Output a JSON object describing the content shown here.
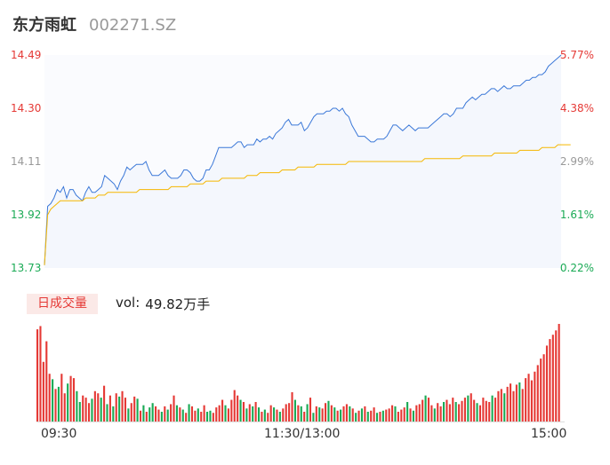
{
  "header": {
    "name": "东方雨虹",
    "code": "002271.SZ"
  },
  "volume_panel": {
    "tab_label": "日成交量",
    "vol_label": "vol:",
    "vol_value": "49.82万手"
  },
  "colors": {
    "price": "#3b78d8",
    "avg": "#f5b700",
    "up": "#e53935",
    "down": "#1aaa55",
    "area": "#f4f7fd",
    "axis_neutral": "#999999"
  },
  "chart_data": [
    {
      "type": "line",
      "y_axis_left": [
        "14.49",
        "14.30",
        "14.11",
        "13.92",
        "13.73"
      ],
      "y_axis_right": [
        "5.77%",
        "4.38%",
        "2.99%",
        "1.61%",
        "0.22%"
      ],
      "ylim": [
        13.73,
        14.49
      ],
      "x_ticks": [
        "09:30",
        "11:30/13:00",
        "15:00"
      ],
      "series": [
        {
          "values": [
            13.74,
            13.95,
            13.96,
            13.98,
            14.01,
            14.0,
            14.02,
            13.98,
            14.01,
            14.01,
            13.99,
            13.98,
            13.97,
            14.0,
            14.02,
            14.0,
            14.0,
            14.01,
            14.02,
            14.06,
            14.05,
            14.04,
            14.03,
            14.01,
            14.04,
            14.06,
            14.09,
            14.08,
            14.09,
            14.1,
            14.1,
            14.1,
            14.11,
            14.08,
            14.06,
            14.06,
            14.06,
            14.07,
            14.08,
            14.06,
            14.05,
            14.05,
            14.05,
            14.06,
            14.08,
            14.08,
            14.07,
            14.05,
            14.04,
            14.04,
            14.05,
            14.08,
            14.08,
            14.1,
            14.13,
            14.16,
            14.16,
            14.16,
            14.16,
            14.16,
            14.17,
            14.18,
            14.18,
            14.16,
            14.17,
            14.17,
            14.17,
            14.19,
            14.18,
            14.19,
            14.19,
            14.2,
            14.19,
            14.21,
            14.22,
            14.23,
            14.25,
            14.26,
            14.24,
            14.24,
            14.24,
            14.25,
            14.22,
            14.23,
            14.25,
            14.27,
            14.28,
            14.28,
            14.28,
            14.29,
            14.29,
            14.3,
            14.3,
            14.29,
            14.3,
            14.28,
            14.27,
            14.24,
            14.22,
            14.2,
            14.2,
            14.2,
            14.19,
            14.18,
            14.18,
            14.19,
            14.19,
            14.19,
            14.2,
            14.22,
            14.24,
            14.24,
            14.23,
            14.22,
            14.23,
            14.24,
            14.23,
            14.22,
            14.23,
            14.23,
            14.23,
            14.23,
            14.24,
            14.25,
            14.26,
            14.27,
            14.28,
            14.28,
            14.27,
            14.28,
            14.3,
            14.3,
            14.3,
            14.32,
            14.33,
            14.34,
            14.33,
            14.34,
            14.35,
            14.35,
            14.36,
            14.37,
            14.37,
            14.36,
            14.37,
            14.38,
            14.37,
            14.37,
            14.38,
            14.38,
            14.38,
            14.39,
            14.4,
            14.4,
            14.41,
            14.41,
            14.42,
            14.42,
            14.43,
            14.45,
            14.46,
            14.47,
            14.48,
            14.49
          ]
        },
        {
          "values": [
            13.74,
            13.92,
            13.94,
            13.95,
            13.96,
            13.97,
            13.97,
            13.97,
            13.97,
            13.97,
            13.97,
            13.97,
            13.97,
            13.98,
            13.98,
            13.98,
            13.98,
            13.99,
            13.99,
            13.99,
            14.0,
            14.0,
            14.0,
            14.0,
            14.0,
            14.0,
            14.0,
            14.0,
            14.0,
            14.0,
            14.01,
            14.01,
            14.01,
            14.01,
            14.01,
            14.01,
            14.01,
            14.01,
            14.01,
            14.01,
            14.02,
            14.02,
            14.02,
            14.02,
            14.02,
            14.02,
            14.03,
            14.03,
            14.03,
            14.03,
            14.03,
            14.04,
            14.04,
            14.04,
            14.04,
            14.04,
            14.05,
            14.05,
            14.05,
            14.05,
            14.05,
            14.05,
            14.05,
            14.05,
            14.06,
            14.06,
            14.06,
            14.06,
            14.07,
            14.07,
            14.07,
            14.07,
            14.07,
            14.07,
            14.07,
            14.08,
            14.08,
            14.08,
            14.08,
            14.08,
            14.09,
            14.09,
            14.09,
            14.09,
            14.09,
            14.09,
            14.1,
            14.1,
            14.1,
            14.1,
            14.1,
            14.1,
            14.1,
            14.1,
            14.1,
            14.1,
            14.11,
            14.11,
            14.11,
            14.11,
            14.11,
            14.11,
            14.11,
            14.11,
            14.11,
            14.11,
            14.11,
            14.11,
            14.11,
            14.11,
            14.11,
            14.11,
            14.11,
            14.11,
            14.11,
            14.11,
            14.11,
            14.11,
            14.11,
            14.11,
            14.12,
            14.12,
            14.12,
            14.12,
            14.12,
            14.12,
            14.12,
            14.12,
            14.12,
            14.12,
            14.12,
            14.12,
            14.13,
            14.13,
            14.13,
            14.13,
            14.13,
            14.13,
            14.13,
            14.13,
            14.13,
            14.13,
            14.14,
            14.14,
            14.14,
            14.14,
            14.14,
            14.14,
            14.14,
            14.14,
            14.15,
            14.15,
            14.15,
            14.15,
            14.15,
            14.15,
            14.15,
            14.16,
            14.16,
            14.16,
            14.16,
            14.16,
            14.17,
            14.17,
            14.17,
            14.17,
            14.17
          ]
        }
      ]
    },
    {
      "type": "bar",
      "values": [
        85,
        88,
        55,
        74,
        44,
        39,
        30,
        32,
        44,
        26,
        35,
        42,
        40,
        28,
        18,
        24,
        22,
        17,
        21,
        28,
        26,
        22,
        33,
        16,
        24,
        14,
        26,
        23,
        28,
        22,
        12,
        17,
        23,
        21,
        10,
        15,
        9,
        13,
        17,
        14,
        11,
        9,
        14,
        11,
        16,
        24,
        15,
        13,
        11,
        8,
        16,
        14,
        10,
        12,
        9,
        15,
        9,
        10,
        8,
        13,
        15,
        20,
        15,
        12,
        20,
        29,
        24,
        20,
        18,
        12,
        16,
        14,
        18,
        13,
        9,
        11,
        8,
        15,
        13,
        11,
        9,
        12,
        16,
        17,
        27,
        20,
        15,
        14,
        9,
        16,
        22,
        8,
        14,
        13,
        12,
        17,
        19,
        15,
        13,
        10,
        11,
        14,
        16,
        14,
        12,
        8,
        10,
        12,
        14,
        9,
        10,
        13,
        8,
        9,
        10,
        11,
        12,
        15,
        14,
        9,
        11,
        13,
        18,
        12,
        10,
        15,
        16,
        20,
        24,
        22,
        15,
        12,
        17,
        14,
        18,
        20,
        16,
        22,
        18,
        16,
        19,
        22,
        24,
        26,
        20,
        17,
        15,
        22,
        19,
        18,
        24,
        22,
        28,
        30,
        26,
        32,
        35,
        28,
        34,
        36,
        30,
        40,
        44,
        38,
        46,
        52,
        58,
        62,
        70,
        76,
        80,
        84,
        90
      ],
      "colors": [
        "up",
        "up",
        "up",
        "up",
        "up",
        "down",
        "up",
        "down",
        "up",
        "up",
        "down",
        "up",
        "up",
        "down",
        "down",
        "up",
        "up",
        "up",
        "down",
        "up",
        "up",
        "down",
        "up",
        "down",
        "up",
        "down",
        "up",
        "down",
        "up",
        "up",
        "down",
        "up",
        "up",
        "down",
        "up",
        "down",
        "up",
        "down",
        "down",
        "up",
        "up",
        "down",
        "up",
        "down",
        "up",
        "up",
        "down",
        "up",
        "down",
        "up",
        "down",
        "up",
        "up",
        "down",
        "up",
        "up",
        "down",
        "down",
        "up",
        "up",
        "up",
        "up",
        "down",
        "up",
        "up",
        "up",
        "up",
        "down",
        "up",
        "down",
        "up",
        "down",
        "up",
        "down",
        "up",
        "down",
        "up",
        "up",
        "down",
        "up",
        "down",
        "up",
        "up",
        "up",
        "up",
        "down",
        "up",
        "down",
        "up",
        "down",
        "up",
        "down",
        "up",
        "down",
        "up",
        "up",
        "down",
        "up",
        "down",
        "up",
        "down",
        "up",
        "up",
        "down",
        "up",
        "down",
        "up",
        "down",
        "up",
        "down",
        "up",
        "up",
        "down",
        "up",
        "down",
        "up",
        "up",
        "up",
        "down",
        "up",
        "up",
        "up",
        "down",
        "up",
        "down",
        "up",
        "up",
        "up",
        "down",
        "up",
        "up",
        "down",
        "up",
        "up",
        "down",
        "up",
        "up",
        "up",
        "down",
        "up",
        "up",
        "up",
        "down",
        "up",
        "up",
        "down",
        "up",
        "up",
        "up",
        "up",
        "down",
        "up",
        "up",
        "up",
        "down",
        "up",
        "up",
        "up",
        "up",
        "down",
        "up",
        "up",
        "up",
        "up",
        "up",
        "up",
        "up",
        "up",
        "up",
        "up",
        "up",
        "up",
        "up",
        "up"
      ]
    }
  ]
}
